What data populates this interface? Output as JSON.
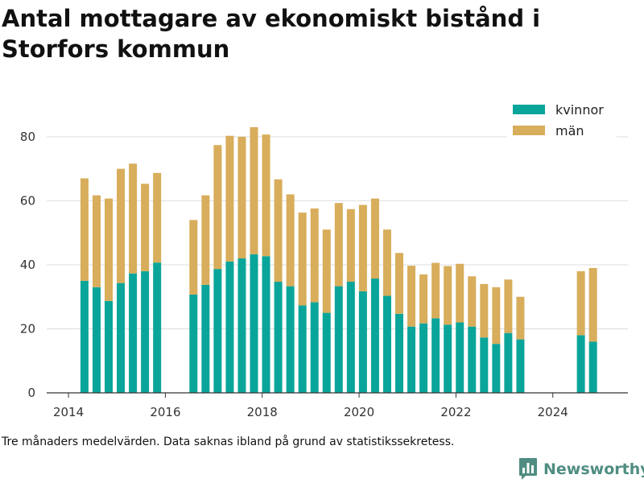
{
  "title": "Antal mottagare av ekonomiskt bistånd i Storfors kommun",
  "note": "Tre månaders medelvärden. Data saknas ibland på grund av statistikssekretess.",
  "brand": {
    "name": "Newsworthy",
    "icon": "bar-chart-logo-icon"
  },
  "colors": {
    "kvinnor": "#0aa59a",
    "man": "#d8ad5b",
    "grid": "#dddddd",
    "axis": "#333333",
    "brand": "#4f8d82"
  },
  "chart_data": {
    "type": "bar",
    "stacked": true,
    "title": "Antal mottagare av ekonomiskt bistånd i Storfors kommun",
    "xlabel": "",
    "ylabel": "",
    "ylim": [
      0,
      85
    ],
    "xlim": [
      2013.55,
      2025.55
    ],
    "y_ticks": [
      0,
      20,
      40,
      60,
      80
    ],
    "x_ticks": [
      2014,
      2016,
      2018,
      2020,
      2022,
      2024
    ],
    "grid": true,
    "legend_position": "top-right",
    "x": [
      2014.33,
      2014.58,
      2014.83,
      2015.08,
      2015.33,
      2015.58,
      2015.83,
      2016.58,
      2016.83,
      2017.08,
      2017.33,
      2017.58,
      2017.83,
      2018.08,
      2018.33,
      2018.58,
      2018.83,
      2019.08,
      2019.33,
      2019.58,
      2019.83,
      2020.08,
      2020.33,
      2020.58,
      2020.83,
      2021.08,
      2021.33,
      2021.58,
      2021.83,
      2022.08,
      2022.33,
      2022.58,
      2022.83,
      2023.08,
      2023.33,
      2024.58,
      2024.83
    ],
    "series": [
      {
        "name": "kvinnor",
        "color": "#0aa59a",
        "values": [
          35,
          33,
          28.7,
          34.3,
          37.3,
          38,
          40.7,
          30.7,
          33.7,
          38.7,
          41,
          42,
          43.3,
          42.7,
          34.7,
          33.3,
          27.3,
          28.3,
          25,
          33.3,
          34.7,
          31.7,
          35.7,
          30.3,
          24.7,
          20.7,
          21.7,
          23.3,
          21.3,
          22,
          20.7,
          17.3,
          15.3,
          18.7,
          16.7,
          18,
          16
        ]
      },
      {
        "name": "män",
        "color": "#d8ad5b",
        "values": [
          32,
          28.7,
          32,
          35.7,
          34.3,
          27.3,
          28,
          23.3,
          28,
          38.7,
          39.3,
          38,
          39.7,
          38,
          32,
          28.7,
          29,
          29.3,
          26,
          26,
          22.7,
          27,
          25,
          20.7,
          19,
          19,
          15.3,
          17.3,
          18.3,
          18.3,
          15.7,
          16.7,
          17.7,
          16.7,
          13.3,
          20,
          23
        ]
      }
    ]
  }
}
